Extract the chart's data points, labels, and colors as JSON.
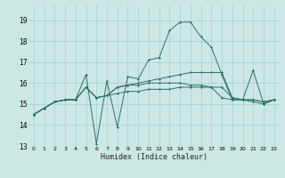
{
  "title": "",
  "xlabel": "Humidex (Indice chaleur)",
  "bg_color": "#cce8e4",
  "grid_color": "#aad4d0",
  "line_color": "#2d6e6e",
  "xlim": [
    -0.5,
    23.5
  ],
  "ylim": [
    13.0,
    19.7
  ],
  "yticks": [
    13,
    14,
    15,
    16,
    17,
    18,
    19
  ],
  "xticks": [
    0,
    1,
    2,
    3,
    4,
    5,
    6,
    7,
    8,
    9,
    10,
    11,
    12,
    13,
    14,
    15,
    16,
    17,
    18,
    19,
    20,
    21,
    22,
    23
  ],
  "series": [
    [
      14.5,
      14.8,
      15.1,
      15.2,
      15.2,
      16.4,
      13.1,
      16.1,
      13.9,
      16.3,
      16.2,
      17.1,
      17.2,
      18.5,
      18.9,
      18.9,
      18.2,
      17.7,
      16.4,
      15.2,
      15.2,
      16.6,
      15.0,
      15.2
    ],
    [
      14.5,
      14.8,
      15.1,
      15.2,
      15.2,
      15.8,
      15.3,
      15.4,
      15.8,
      15.9,
      16.0,
      16.1,
      16.2,
      16.3,
      16.4,
      16.5,
      16.5,
      16.5,
      16.5,
      15.3,
      15.2,
      15.2,
      15.1,
      15.2
    ],
    [
      14.5,
      14.8,
      15.1,
      15.2,
      15.2,
      15.8,
      15.3,
      15.4,
      15.8,
      15.9,
      15.9,
      16.0,
      16.0,
      16.0,
      16.0,
      15.9,
      15.9,
      15.8,
      15.8,
      15.3,
      15.2,
      15.2,
      15.1,
      15.2
    ],
    [
      14.5,
      14.8,
      15.1,
      15.2,
      15.2,
      15.8,
      15.3,
      15.4,
      15.5,
      15.6,
      15.6,
      15.7,
      15.7,
      15.7,
      15.8,
      15.8,
      15.8,
      15.8,
      15.3,
      15.2,
      15.2,
      15.1,
      15.0,
      15.2
    ]
  ]
}
